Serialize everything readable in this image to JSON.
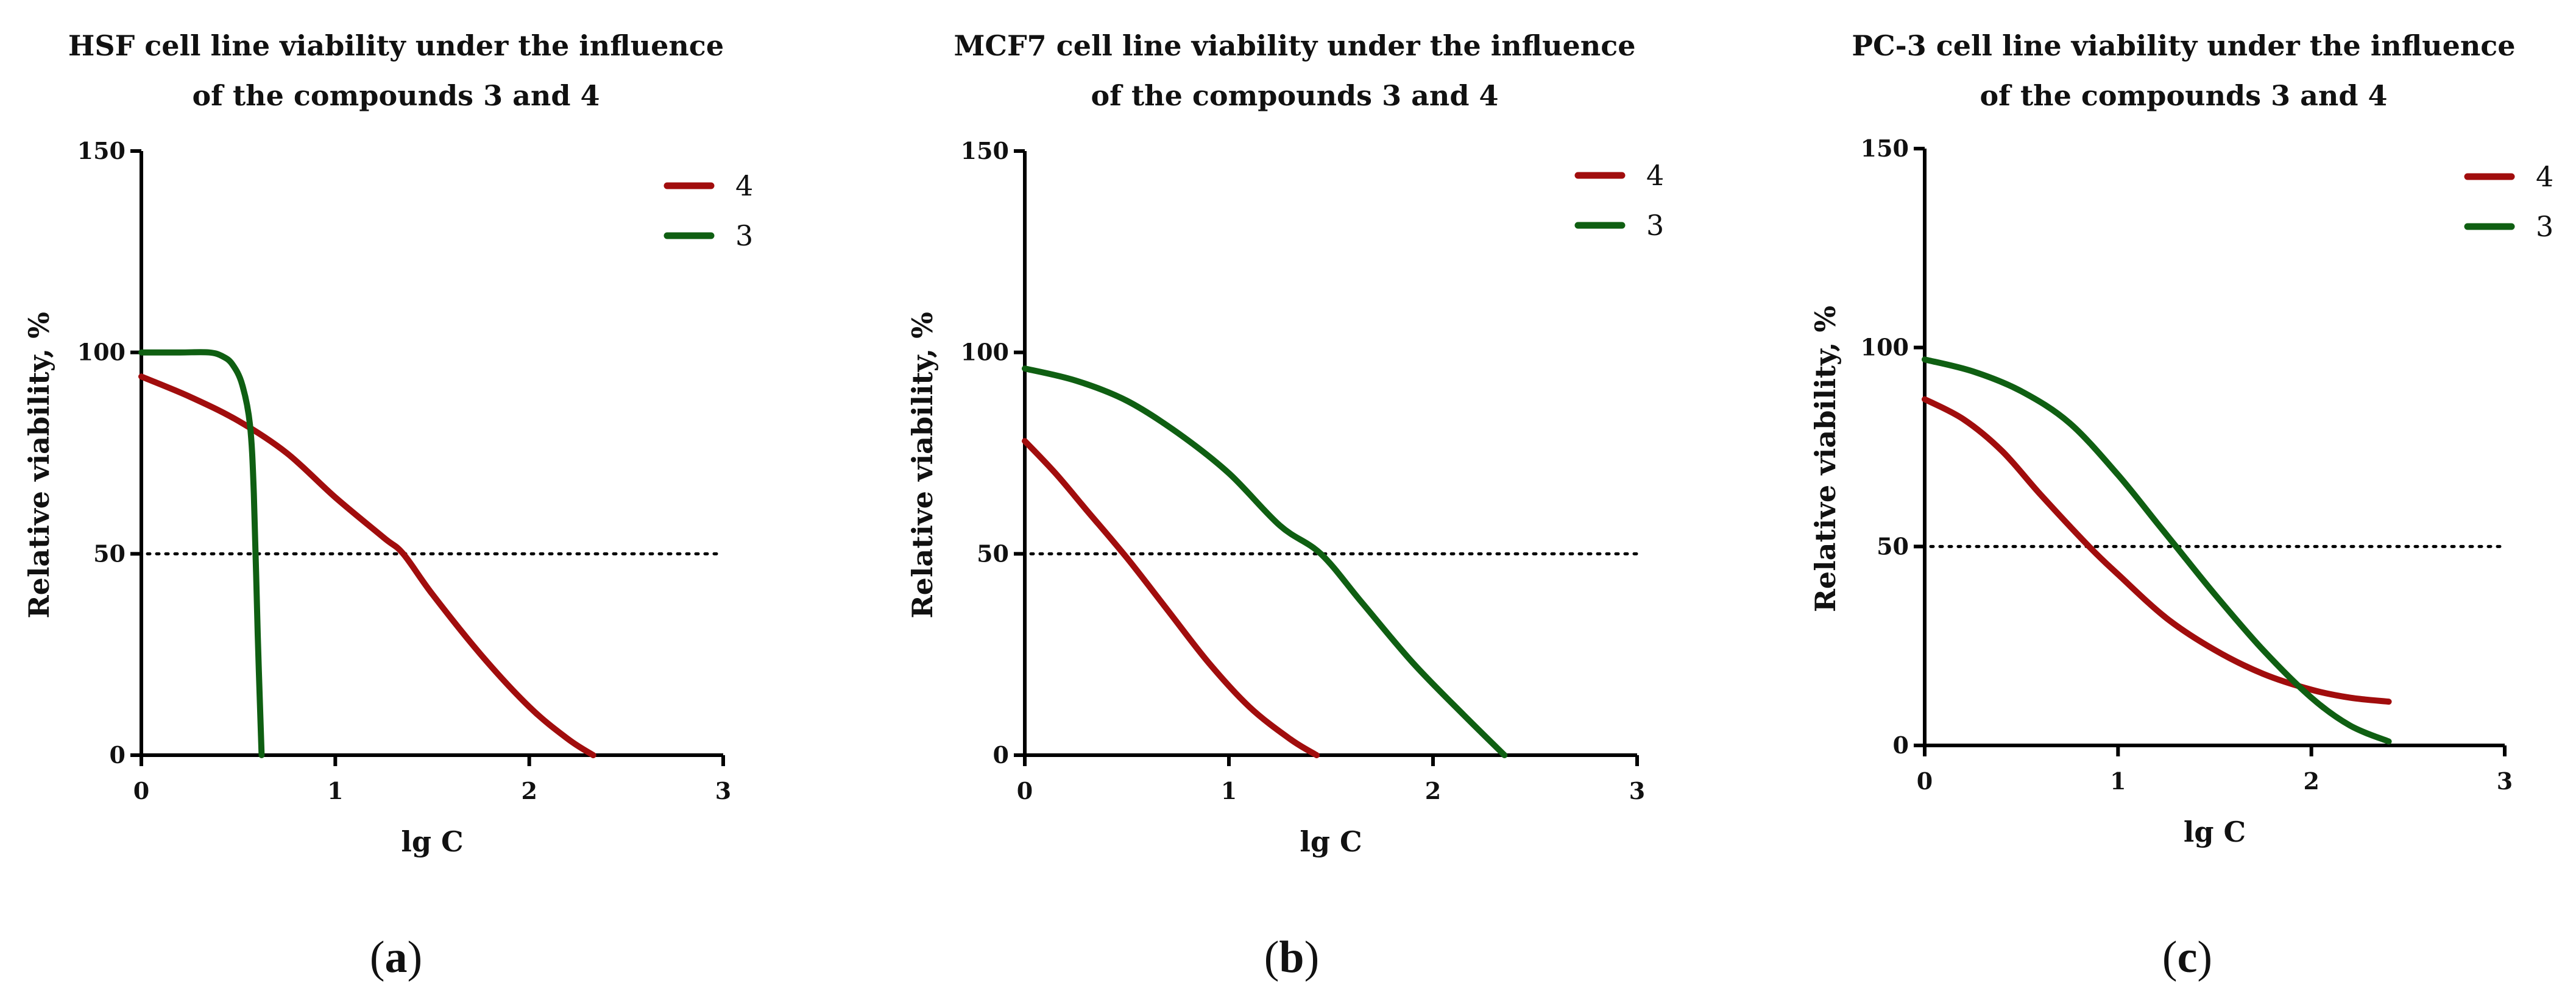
{
  "chart_data": [
    {
      "type": "line",
      "panel": "a",
      "title": [
        "HSF cell line viability under the influence",
        "of the compounds 3 and 4"
      ],
      "xlabel": "lg C",
      "ylabel": "Relative viability, %",
      "xlim": [
        0,
        3
      ],
      "ylim": [
        0,
        150
      ],
      "xticks": [
        "0",
        "1",
        "2",
        "3"
      ],
      "yticks": [
        "0",
        "50",
        "100",
        "150"
      ],
      "reference_line": {
        "y": 50,
        "style": "dotted"
      },
      "legend_position": "top-right",
      "series": [
        {
          "name": "4",
          "color": "#a10d0d",
          "x": [
            0,
            0.25,
            0.5,
            0.75,
            1.0,
            1.25,
            1.35,
            1.5,
            1.75,
            2.0,
            2.2,
            2.33
          ],
          "y": [
            94,
            89,
            83,
            75,
            64,
            54,
            50,
            40,
            25,
            12,
            4,
            0
          ]
        },
        {
          "name": "3",
          "color": "#0f5f12",
          "x": [
            0,
            0.2,
            0.35,
            0.42,
            0.47,
            0.52,
            0.56,
            0.58,
            0.6,
            0.62
          ],
          "y": [
            100,
            100,
            100,
            99,
            97,
            92,
            82,
            65,
            30,
            0
          ]
        }
      ],
      "caption": "a"
    },
    {
      "type": "line",
      "panel": "b",
      "title": [
        "MCF7 cell line viability under the influence",
        "of the compounds 3 and 4"
      ],
      "xlabel": "lg C",
      "ylabel": "Relative viability, %",
      "xlim": [
        0,
        3
      ],
      "ylim": [
        0,
        150
      ],
      "xticks": [
        "0",
        "1",
        "2",
        "3"
      ],
      "yticks": [
        "0",
        "50",
        "100",
        "150"
      ],
      "reference_line": {
        "y": 50,
        "style": "dotted"
      },
      "legend_position": "top-right",
      "series": [
        {
          "name": "4",
          "color": "#a10d0d",
          "x": [
            0,
            0.15,
            0.3,
            0.5,
            0.7,
            0.9,
            1.1,
            1.3,
            1.43
          ],
          "y": [
            78,
            70,
            61,
            49,
            36,
            23,
            12,
            4,
            0
          ]
        },
        {
          "name": "3",
          "color": "#0f5f12",
          "x": [
            0,
            0.25,
            0.5,
            0.75,
            1.0,
            1.25,
            1.45,
            1.65,
            1.9,
            2.15,
            2.35
          ],
          "y": [
            96,
            93,
            88,
            80,
            70,
            57,
            50,
            38,
            23,
            10,
            0
          ]
        }
      ],
      "caption": "b"
    },
    {
      "type": "line",
      "panel": "c",
      "title": [
        "PC-3 cell line viability under the influence",
        "of the compounds 3 and 4"
      ],
      "xlabel": "lg C",
      "ylabel": "Relative viability, %",
      "xlim": [
        0,
        3
      ],
      "ylim": [
        0,
        150
      ],
      "xticks": [
        "0",
        "1",
        "2",
        "3"
      ],
      "yticks": [
        "0",
        "50",
        "100",
        "150"
      ],
      "reference_line": {
        "y": 50,
        "style": "dotted"
      },
      "legend_position": "top-right",
      "series": [
        {
          "name": "4",
          "color": "#a10d0d",
          "x": [
            0,
            0.2,
            0.4,
            0.6,
            0.85,
            1.0,
            1.25,
            1.5,
            1.75,
            2.0,
            2.2,
            2.4
          ],
          "y": [
            87,
            82,
            74,
            63,
            50,
            43,
            32,
            24,
            18,
            14,
            12,
            11
          ]
        },
        {
          "name": "3",
          "color": "#0f5f12",
          "x": [
            0,
            0.25,
            0.5,
            0.75,
            1.0,
            1.2,
            1.3,
            1.5,
            1.75,
            2.0,
            2.2,
            2.4
          ],
          "y": [
            97,
            94,
            89,
            81,
            68,
            56,
            50,
            38,
            24,
            12,
            5,
            1
          ]
        }
      ],
      "caption": "c"
    }
  ]
}
